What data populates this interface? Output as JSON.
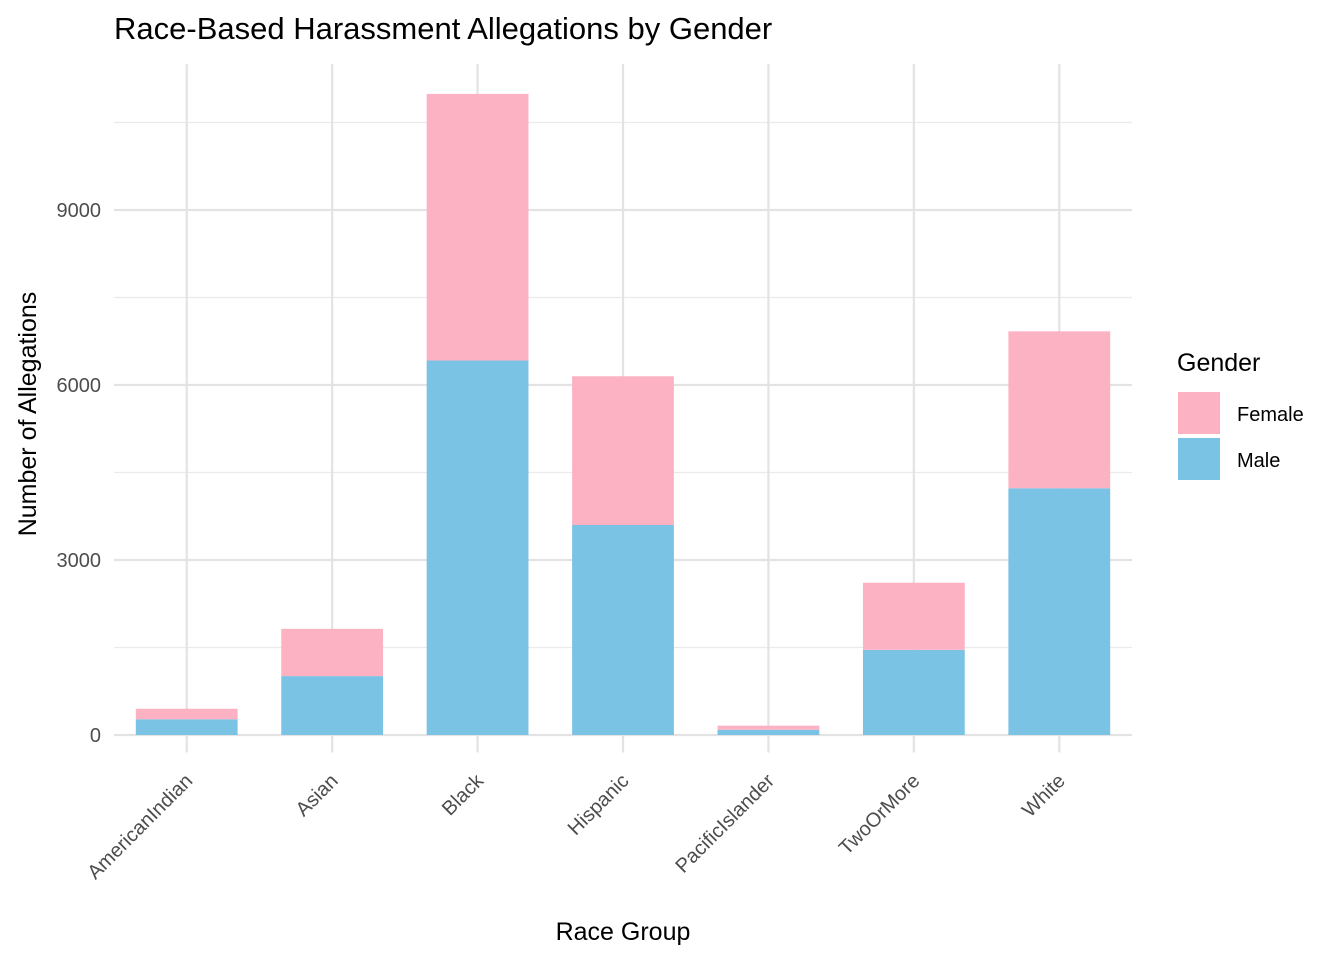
{
  "chart_data": {
    "type": "bar",
    "stacked": true,
    "title": "Race-Based Harassment Allegations by Gender",
    "xlabel": "Race Group",
    "ylabel": "Number of Allegations",
    "categories": [
      "AmericanIndian",
      "Asian",
      "Black",
      "Hispanic",
      "PacificIslander",
      "TwoOrMore",
      "White"
    ],
    "series": [
      {
        "name": "Male",
        "color": "#7AC3E5",
        "values": [
          270,
          1010,
          6420,
          3600,
          90,
          1460,
          4230
        ]
      },
      {
        "name": "Female",
        "color": "#FDB2C3",
        "values": [
          180,
          810,
          4570,
          2550,
          70,
          1150,
          2690
        ]
      }
    ],
    "ylim": [
      -300,
      11500
    ],
    "yticks": [
      0,
      3000,
      6000,
      9000
    ],
    "grid": true,
    "legend": {
      "title": "Gender",
      "position": "right",
      "entries": [
        {
          "label": "Female",
          "color": "#FDB2C3"
        },
        {
          "label": "Male",
          "color": "#7AC3E5"
        }
      ]
    }
  }
}
